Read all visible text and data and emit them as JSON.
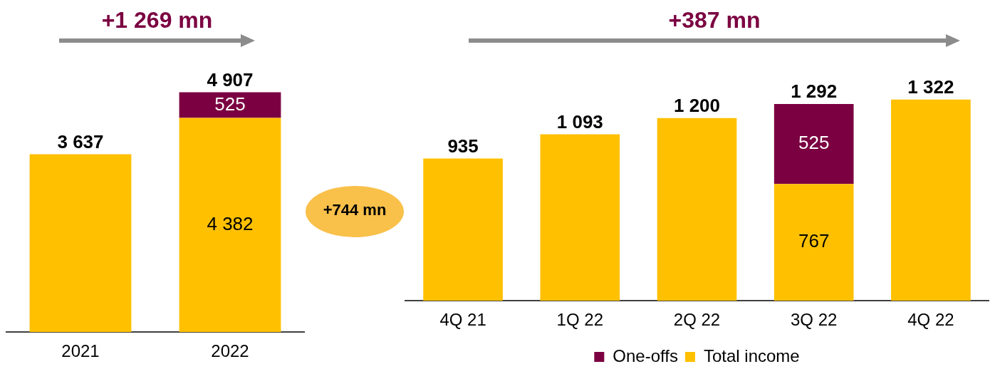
{
  "chart_data": [
    {
      "type": "bar",
      "stacked": true,
      "categories": [
        "2021",
        "2022"
      ],
      "annotations": [
        "+1 269 mn"
      ],
      "legend": false,
      "grid": false,
      "series": [
        {
          "color": "#ffc000",
          "values": [
            3637,
            4382
          ],
          "value_labels": [
            null,
            "4 382"
          ]
        },
        {
          "color": "#7b0041",
          "values": [
            null,
            525
          ],
          "value_labels": [
            null,
            "525"
          ]
        }
      ],
      "totals": [
        "3 637",
        "4 907"
      ]
    },
    {
      "type": "bar",
      "stacked": true,
      "categories": [
        "4Q 21",
        "1Q 22",
        "2Q 22",
        "3Q 22",
        "4Q 22"
      ],
      "annotations": [
        "+387 mn",
        "+744 mn"
      ],
      "legend": "bottom",
      "grid": false,
      "series": [
        {
          "name": "Total income",
          "color": "#ffc000",
          "values": [
            935,
            1093,
            1200,
            767,
            1322
          ],
          "value_labels": [
            null,
            null,
            null,
            "767",
            null
          ]
        },
        {
          "name": "One-offs",
          "color": "#7b0041",
          "values": [
            null,
            null,
            null,
            525,
            null
          ],
          "value_labels": [
            null,
            null,
            null,
            "525",
            null
          ]
        }
      ],
      "totals": [
        "935",
        "1 093",
        "1 200",
        "1 292",
        "1 322"
      ]
    }
  ]
}
